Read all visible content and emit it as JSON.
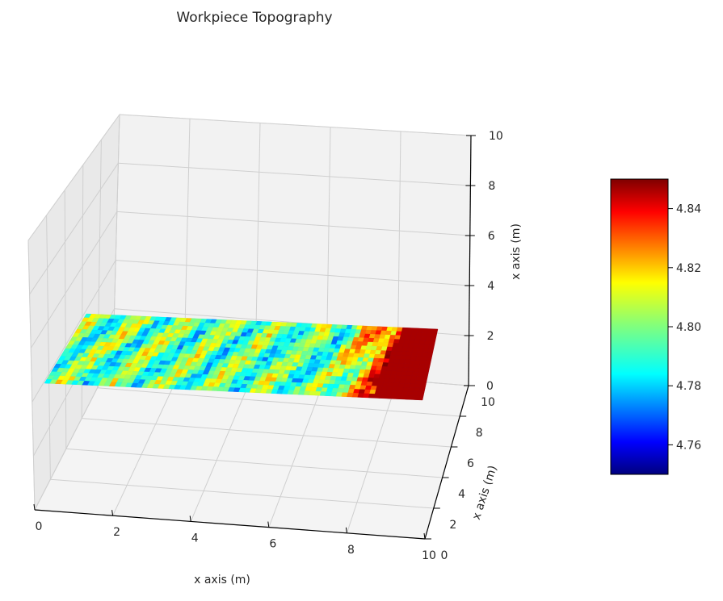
{
  "chart_data": {
    "type": "surface3d",
    "title": "Workpiece Topography",
    "xlabel": "x axis (m)",
    "ylabel": "x axis (m)",
    "zlabel": "x axis (m)",
    "x_ticks": [
      "0",
      "2",
      "4",
      "6",
      "8",
      "10"
    ],
    "y_ticks": [
      "0",
      "2",
      "4",
      "6",
      "8",
      "10"
    ],
    "z_ticks": [
      "0",
      "2",
      "4",
      "6",
      "8",
      "10"
    ],
    "xlim": [
      0,
      10
    ],
    "ylim": [
      0,
      10
    ],
    "zlim": [
      0,
      10
    ],
    "surface_extent": {
      "x": [
        0,
        10
      ],
      "y": [
        0,
        4
      ],
      "z": [
        4.75,
        4.85
      ]
    },
    "colormap": "jet",
    "colorbar": {
      "ticks": [
        "4.76",
        "4.78",
        "4.80",
        "4.82",
        "4.84"
      ],
      "range": [
        4.75,
        4.85
      ],
      "position": "right"
    },
    "grid": true
  }
}
